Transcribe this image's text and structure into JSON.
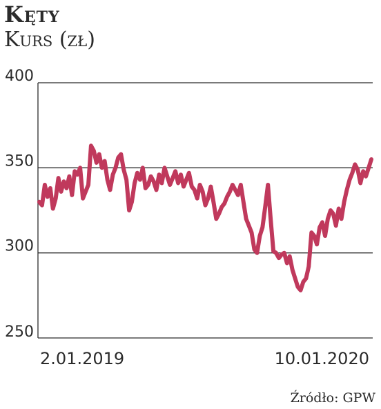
{
  "header": {
    "title": "Kęty",
    "subtitle": "Kurs (zł)"
  },
  "source": "Źródło: GPW",
  "chart_data": {
    "type": "line",
    "title": "Kęty",
    "subtitle": "Kurs (zł)",
    "ylim": [
      250,
      400
    ],
    "yticks": [
      250,
      300,
      350,
      400
    ],
    "xtick_labels": [
      "2.01.2019",
      "10.01.2020"
    ],
    "grid": "horizontal",
    "series_color": "#c0395c",
    "series": [
      {
        "x_range": [
          "2.01.2019",
          "10.01.2020"
        ],
        "values": [
          330,
          328,
          340,
          333,
          338,
          326,
          332,
          344,
          336,
          342,
          338,
          345,
          334,
          348,
          346,
          350,
          332,
          336,
          340,
          363,
          360,
          353,
          358,
          350,
          354,
          343,
          337,
          346,
          350,
          356,
          358,
          349,
          343,
          325,
          330,
          341,
          347,
          343,
          350,
          338,
          340,
          345,
          342,
          337,
          346,
          341,
          350,
          345,
          340,
          344,
          348,
          341,
          346,
          339,
          343,
          347,
          339,
          337,
          332,
          340,
          336,
          328,
          332,
          339,
          330,
          320,
          323,
          327,
          329,
          333,
          336,
          340,
          337,
          334,
          340,
          330,
          320,
          316,
          312,
          302,
          300,
          310,
          315,
          327,
          340,
          320,
          301,
          300,
          297,
          299,
          300,
          294,
          298,
          290,
          285,
          280,
          278,
          283,
          285,
          292,
          312,
          310,
          305,
          315,
          318,
          310,
          320,
          325,
          323,
          316,
          326,
          320,
          330,
          337,
          343,
          347,
          352,
          349,
          341,
          348,
          345,
          350,
          355
        ]
      }
    ]
  },
  "colors": {
    "line": "#c0395c",
    "grid": "#2b2b2b",
    "text": "#2b2b2b"
  }
}
